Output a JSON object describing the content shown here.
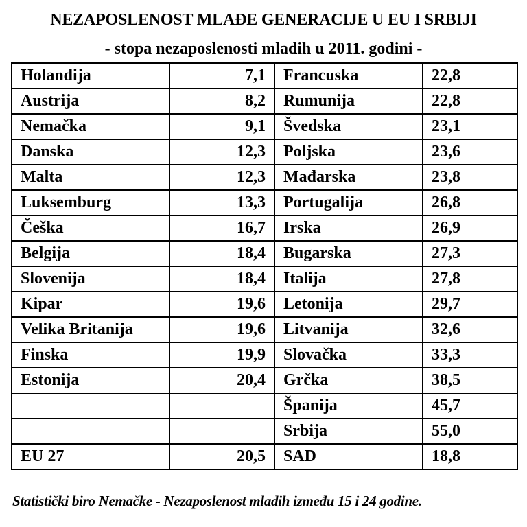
{
  "title": "NEZAPOSLENOST MLAĐE GENERACIJE U EU I SRBIJI",
  "subtitle": "- stopa nezaposlenosti mladih u 2011. godini -",
  "rows": [
    {
      "c1": "Holandija",
      "v1": "7,1",
      "c2": "Francuska",
      "v2": "22,8"
    },
    {
      "c1": "Austrija",
      "v1": "8,2",
      "c2": "Rumunija",
      "v2": "22,8"
    },
    {
      "c1": "Nemačka",
      "v1": "9,1",
      "c2": "Švedska",
      "v2": "23,1"
    },
    {
      "c1": "Danska",
      "v1": "12,3",
      "c2": "Poljska",
      "v2": "23,6"
    },
    {
      "c1": "Malta",
      "v1": "12,3",
      "c2": "Mađarska",
      "v2": "23,8"
    },
    {
      "c1": "Luksemburg",
      "v1": "13,3",
      "c2": "Portugalija",
      "v2": "26,8"
    },
    {
      "c1": "Češka",
      "v1": "16,7",
      "c2": "Irska",
      "v2": "26,9"
    },
    {
      "c1": "Belgija",
      "v1": "18,4",
      "c2": "Bugarska",
      "v2": "27,3"
    },
    {
      "c1": "Slovenija",
      "v1": "18,4",
      "c2": "Italija",
      "v2": "27,8"
    },
    {
      "c1": "Kipar",
      "v1": "19,6",
      "c2": "Letonija",
      "v2": "29,7"
    },
    {
      "c1": "Velika Britanija",
      "v1": "19,6",
      "c2": "Litvanija",
      "v2": "32,6"
    },
    {
      "c1": "Finska",
      "v1": "19,9",
      "c2": "Slovačka",
      "v2": "33,3"
    },
    {
      "c1": "Estonija",
      "v1": "20,4",
      "c2": "Grčka",
      "v2": "38,5"
    },
    {
      "c1": "",
      "v1": "",
      "c2": "Španija",
      "v2": "45,7"
    },
    {
      "c1": "",
      "v1": "",
      "c2": "Srbija",
      "v2": "55,0"
    },
    {
      "c1": "EU 27",
      "v1": "20,5",
      "c2": "SAD",
      "v2": "18,8"
    }
  ],
  "footnote": "Statistički biro Nemačke - Nezaposlenost mladih između 15 i 24 godine."
}
